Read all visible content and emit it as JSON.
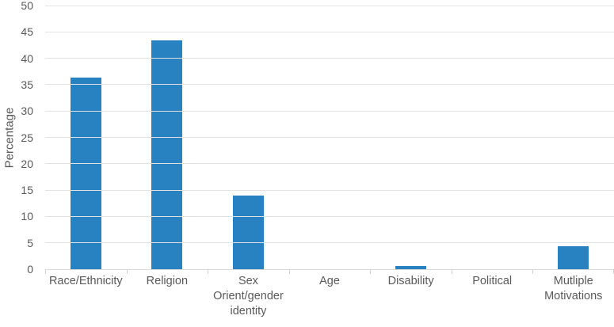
{
  "chart_data": {
    "type": "bar",
    "title": "",
    "xlabel": "",
    "ylabel": "Percentage",
    "categories": [
      "Race/Ethnicity",
      "Religion",
      "Sex Orient/gender identity",
      "Age",
      "Disability",
      "Political",
      "Mutliple Motivations"
    ],
    "category_display": [
      "Race/Ethnicity",
      "Religion",
      "Sex\nOrient/gender\nidentity",
      "Age",
      "Disability",
      "Political",
      "Mutliple\nMotivations"
    ],
    "values": [
      36.3,
      43.4,
      14,
      0,
      0.6,
      0,
      4.3
    ],
    "ylim": [
      0,
      50
    ],
    "ytick_step": 5,
    "yticks": [
      0,
      5,
      10,
      15,
      20,
      25,
      30,
      35,
      40,
      45,
      50
    ],
    "grid": true,
    "legend": false,
    "colors": {
      "bar": "#2881c1",
      "gridline": "#e2e2e2",
      "axis_line": "#d9d9d9",
      "tick_mark": "#cfcfcf",
      "text": "#595959"
    }
  }
}
